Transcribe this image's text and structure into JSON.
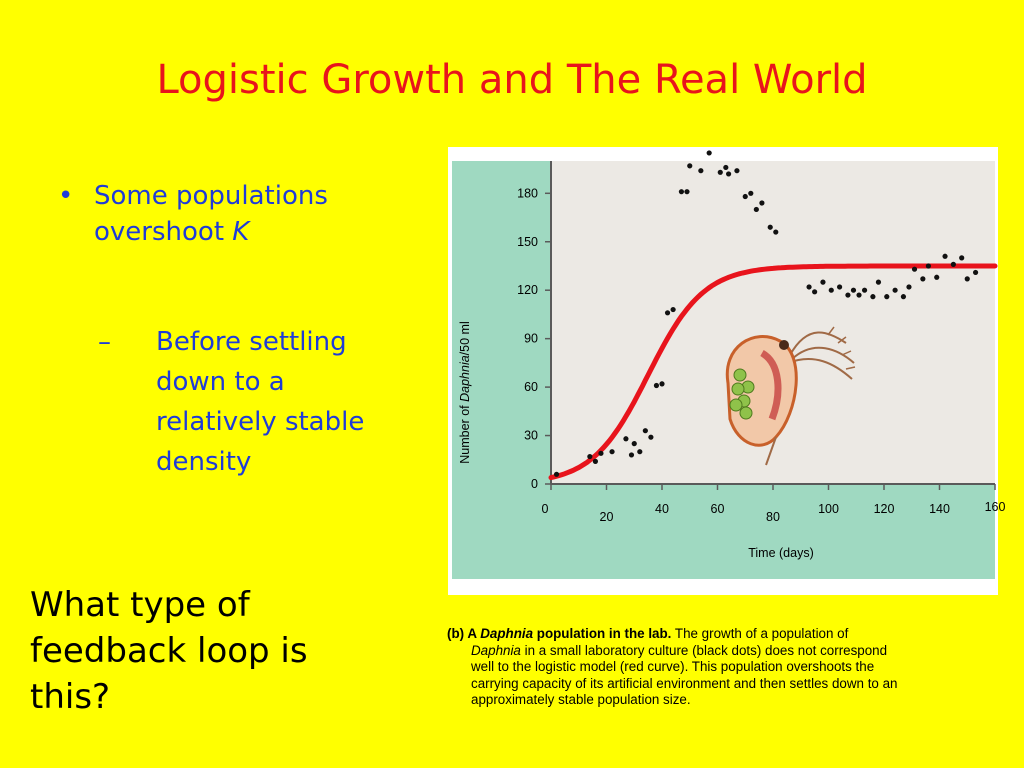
{
  "slide": {
    "title": "Logistic Growth and The Real World",
    "bullet_marker": "•",
    "bullet_text_line1": "Some populations",
    "bullet_text_line2_prefix": "overshoot ",
    "bullet_text_line2_k": "K",
    "sub_marker": "–",
    "sub_lines": [
      "Before settling",
      "down to a",
      "relatively stable",
      "density"
    ],
    "question_lines": [
      "What type of",
      "feedback loop is",
      "this?"
    ]
  },
  "caption": {
    "label": "(b) A ",
    "label_italic": "Daphnia",
    "label_rest": " population in the lab.",
    "line1_rest": " The growth of a population of",
    "line2_italic": "Daphnia",
    "line2_rest": " in a small laboratory culture (black dots) does not correspond",
    "line3": "well to the logistic model (red curve). This population overshoots the",
    "line4": "carrying capacity of its artificial environment and then settles down to an",
    "line5": "approximately stable population size."
  },
  "chart_data": {
    "type": "scatter",
    "ylabel_prefix": "Number of ",
    "ylabel_italic": "Daphnia",
    "ylabel_suffix": "/50 ml",
    "xlabel": "Time (days)",
    "xlim": [
      0,
      160
    ],
    "ylim": [
      0,
      200
    ],
    "y_ticks": [
      0,
      30,
      60,
      90,
      120,
      150,
      180
    ],
    "x_ticks": [
      0,
      20,
      40,
      60,
      80,
      100,
      120,
      140,
      160
    ],
    "curve_color": "#e8141c",
    "axis_panel_color": "#9fd9c1",
    "plot_bg_color": "#ece9e4",
    "logistic_curve": {
      "K": 135,
      "r": 0.1,
      "midpoint": 35
    },
    "points": [
      {
        "x": 2,
        "y": 6
      },
      {
        "x": 14,
        "y": 17
      },
      {
        "x": 16,
        "y": 14
      },
      {
        "x": 18,
        "y": 19
      },
      {
        "x": 22,
        "y": 20
      },
      {
        "x": 27,
        "y": 28
      },
      {
        "x": 29,
        "y": 18
      },
      {
        "x": 30,
        "y": 25
      },
      {
        "x": 32,
        "y": 20
      },
      {
        "x": 34,
        "y": 33
      },
      {
        "x": 36,
        "y": 29
      },
      {
        "x": 38,
        "y": 61
      },
      {
        "x": 40,
        "y": 62
      },
      {
        "x": 42,
        "y": 106
      },
      {
        "x": 44,
        "y": 108
      },
      {
        "x": 47,
        "y": 181
      },
      {
        "x": 49,
        "y": 181
      },
      {
        "x": 50,
        "y": 197
      },
      {
        "x": 54,
        "y": 194
      },
      {
        "x": 57,
        "y": 205
      },
      {
        "x": 61,
        "y": 193
      },
      {
        "x": 63,
        "y": 196
      },
      {
        "x": 64,
        "y": 192
      },
      {
        "x": 67,
        "y": 194
      },
      {
        "x": 70,
        "y": 178
      },
      {
        "x": 72,
        "y": 180
      },
      {
        "x": 74,
        "y": 170
      },
      {
        "x": 76,
        "y": 174
      },
      {
        "x": 79,
        "y": 159
      },
      {
        "x": 81,
        "y": 156
      },
      {
        "x": 93,
        "y": 122
      },
      {
        "x": 95,
        "y": 119
      },
      {
        "x": 98,
        "y": 125
      },
      {
        "x": 101,
        "y": 120
      },
      {
        "x": 104,
        "y": 122
      },
      {
        "x": 107,
        "y": 117
      },
      {
        "x": 109,
        "y": 120
      },
      {
        "x": 111,
        "y": 117
      },
      {
        "x": 113,
        "y": 120
      },
      {
        "x": 116,
        "y": 116
      },
      {
        "x": 118,
        "y": 125
      },
      {
        "x": 121,
        "y": 116
      },
      {
        "x": 124,
        "y": 120
      },
      {
        "x": 127,
        "y": 116
      },
      {
        "x": 129,
        "y": 122
      },
      {
        "x": 131,
        "y": 133
      },
      {
        "x": 134,
        "y": 127
      },
      {
        "x": 136,
        "y": 135
      },
      {
        "x": 139,
        "y": 128
      },
      {
        "x": 142,
        "y": 141
      },
      {
        "x": 145,
        "y": 136
      },
      {
        "x": 148,
        "y": 140
      },
      {
        "x": 150,
        "y": 127
      },
      {
        "x": 153,
        "y": 131
      }
    ],
    "legend": "none",
    "grid": false
  }
}
